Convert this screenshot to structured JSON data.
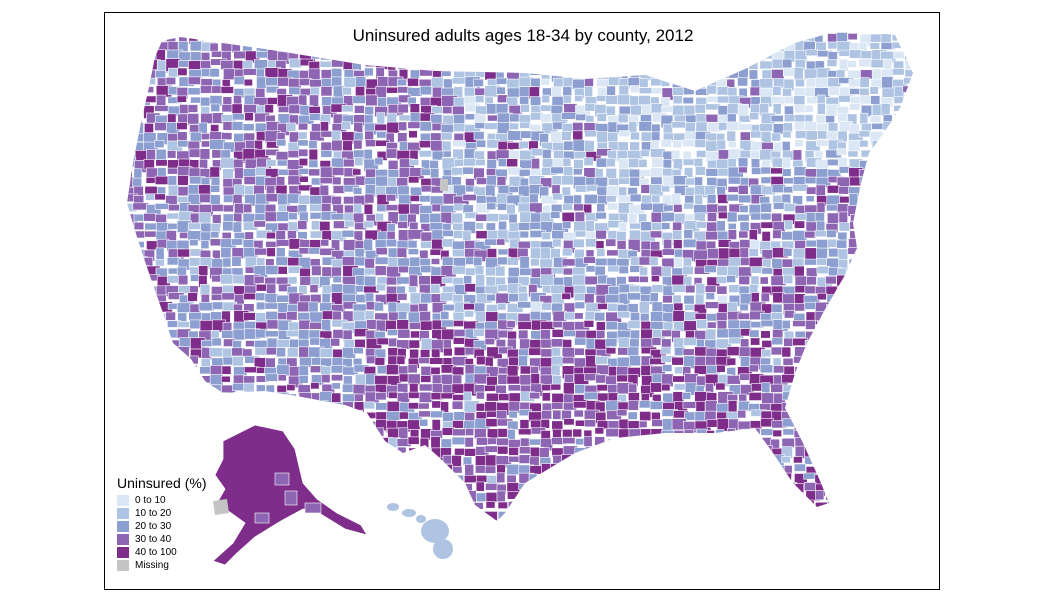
{
  "title": "Uninsured adults ages 18-34 by county, 2012",
  "legend": {
    "title": "Uninsured (%)",
    "items": [
      {
        "label": "0 to 10",
        "color": "#dbe7f4"
      },
      {
        "label": "10 to 20",
        "color": "#aec4e2"
      },
      {
        "label": "20 to 30",
        "color": "#8d9fd0"
      },
      {
        "label": "30 to 40",
        "color": "#8e65b3"
      },
      {
        "label": "40 to 100",
        "color": "#7e2d8a"
      },
      {
        "label": "Missing",
        "color": "#c4c4c4"
      }
    ]
  },
  "map_features": [
    {
      "name": "contiguous-us",
      "category": "mixed"
    },
    {
      "name": "alaska",
      "category": "40 to 100"
    },
    {
      "name": "hawaii",
      "category": "10 to 20"
    }
  ]
}
